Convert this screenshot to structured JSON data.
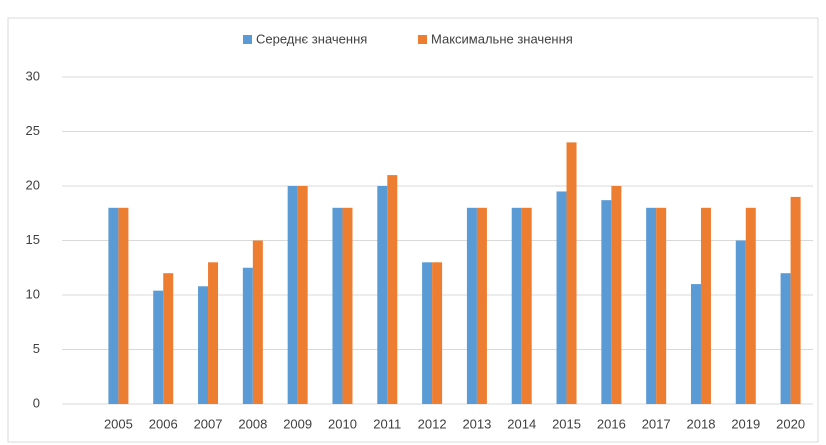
{
  "chart_data": {
    "type": "bar",
    "categories": [
      "2005",
      "2006",
      "2007",
      "2008",
      "2009",
      "2010",
      "2011",
      "2012",
      "2013",
      "2014",
      "2015",
      "2016",
      "2017",
      "2018",
      "2019",
      "2020"
    ],
    "series": [
      {
        "name": "Середнє значення",
        "color": "#5b9bd5",
        "values": [
          18,
          10.4,
          10.8,
          12.5,
          20,
          18,
          20,
          13,
          18,
          18,
          19.5,
          18.7,
          18,
          11,
          15,
          12
        ]
      },
      {
        "name": "Максимальне значення",
        "color": "#ed7d31",
        "values": [
          18,
          12,
          13,
          15,
          20,
          18,
          21,
          13,
          18,
          18,
          24,
          20,
          18,
          18,
          18,
          19
        ]
      }
    ],
    "ylim": [
      0,
      30
    ],
    "yticks": [
      0,
      5,
      10,
      15,
      20,
      25,
      30
    ],
    "grid": true,
    "legend": "top"
  }
}
